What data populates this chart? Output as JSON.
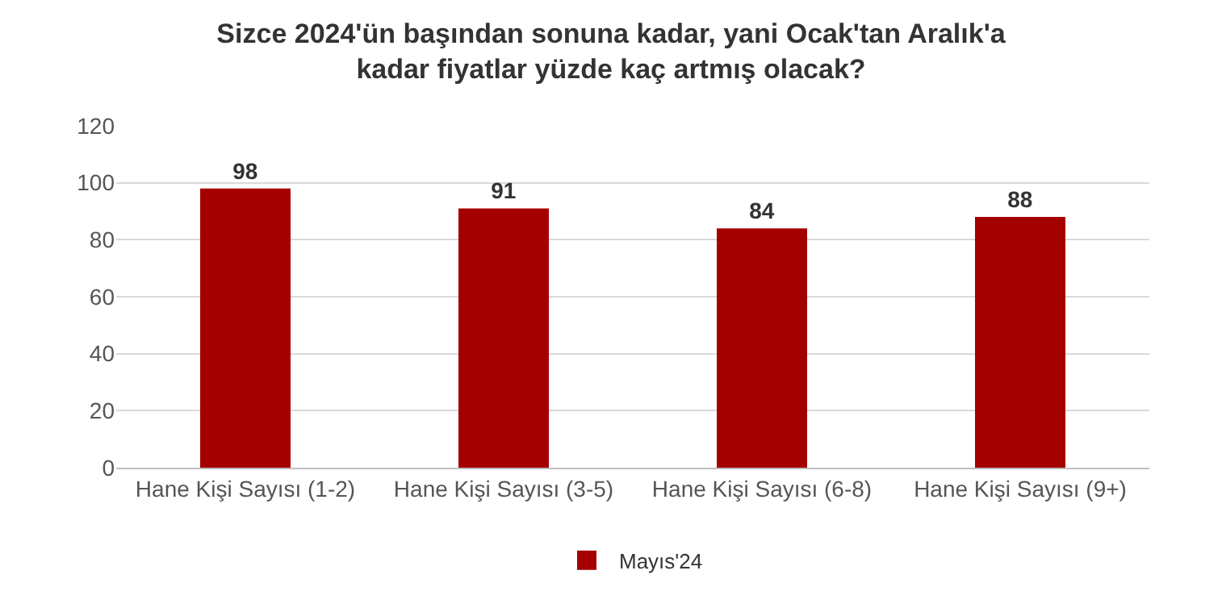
{
  "chart_data": {
    "type": "bar",
    "title": "Sizce 2024'ün başından sonuna kadar, yani Ocak'tan Aralık'a\nkadar fiyatlar yüzde kaç artmış olacak?",
    "categories": [
      "Hane Kişi Sayısı (1-2)",
      "Hane Kişi Sayısı (3-5)",
      "Hane Kişi Sayısı (6-8)",
      "Hane Kişi Sayısı (9+)"
    ],
    "series": [
      {
        "name": "Mayıs'24",
        "color": "#a50000",
        "values": [
          98,
          91,
          84,
          88
        ]
      }
    ],
    "ylim": [
      0,
      120
    ],
    "yticks": [
      0,
      20,
      40,
      60,
      80,
      100,
      120
    ],
    "grid": "y",
    "legend": "bottom",
    "data_labels": true
  }
}
